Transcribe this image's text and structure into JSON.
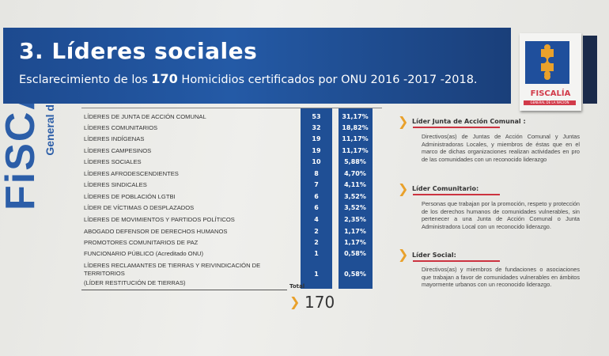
{
  "header": {
    "title": "3. Líderes sociales",
    "subtitle_pre": "Esclarecimiento de los",
    "subtitle_num": "170",
    "subtitle_post": "Homicidios certificados por ONU 2016 -2017 -2018."
  },
  "logo": {
    "name": "FISCALÍA",
    "tagline": "GENERAL DE LA NACIÓN",
    "colors": {
      "blue": "#1f4f9c",
      "gold": "#e9a12b",
      "red": "#d23b4a"
    }
  },
  "watermark": {
    "text": "FiSCA",
    "sub": "General d"
  },
  "table": {
    "rows": [
      {
        "label": "LÍDERES DE JUNTA DE ACCIÓN COMUNAL",
        "count": "53",
        "pct": "31,17%"
      },
      {
        "label": "LÍDERES COMUNITARIOS",
        "count": "32",
        "pct": "18,82%"
      },
      {
        "label": "LÍDERES INDÍGENAS",
        "count": "19",
        "pct": "11,17%"
      },
      {
        "label": "LÍDERES CAMPESINOS",
        "count": "19",
        "pct": "11,17%"
      },
      {
        "label": "LÍDERES SOCIALES",
        "count": "10",
        "pct": "5,88%"
      },
      {
        "label": "LÍDERES AFRODESCENDIENTES",
        "count": "8",
        "pct": "4,70%"
      },
      {
        "label": "LÍDERES  SINDICALES",
        "count": "7",
        "pct": "4,11%"
      },
      {
        "label": "LÍDERES DE POBLACIÓN LGTBI",
        "count": "6",
        "pct": "3,52%"
      },
      {
        "label": "LÍDER DE VÍCTIMAS O DESPLAZADOS",
        "count": "6",
        "pct": "3,52%"
      },
      {
        "label": "LÍDERES DE MOVIMIENTOS Y PARTIDOS POLÍTICOS",
        "count": "4",
        "pct": "2,35%"
      },
      {
        "label": "ABOGADO DEFENSOR DE DERECHOS HUMANOS",
        "count": "2",
        "pct": "1,17%"
      },
      {
        "label": "PROMOTORES COMUNITARIOS DE PAZ",
        "count": "2",
        "pct": "1,17%"
      },
      {
        "label": "FUNCIONARIO PÚBLICO  (Acreditado ONU)",
        "count": "1",
        "pct": "0,58%"
      },
      {
        "label": "LÍDERES RECLAMANTES DE TIERRAS Y REIVINDICACIÓN DE TERRITORIOS",
        "label2": "(LÍDER RESTITUCIÓN DE TIERRAS)",
        "count": "1",
        "pct": "0,58%"
      }
    ],
    "total_label": "Total",
    "total": "170"
  },
  "definitions": [
    {
      "title": "Líder Junta de Acción Comunal :",
      "text": "Directivos(as) de Juntas de Acción Comunal y Juntas Administradoras Locales, y miembros de éstas que en el marco de dichas organizaciones realizan actividades en pro de las comunidades con un reconocido liderazgo"
    },
    {
      "title": "Líder Comunitario:",
      "text": "Personas que trabajan por la promoción, respeto y protección de los derechos humanos de comunidades vulnerables, sin pertenecer a una Junta de Acción Comunal o Junta Administradora Local con un reconocido liderazgo."
    },
    {
      "title": "Líder Social:",
      "text": "Directivos(as) y miembros de fundaciones o asociaciones que trabajan a favor de comunidades vulnerables en ámbitos mayormente urbanos con un reconocido liderazgo."
    }
  ]
}
